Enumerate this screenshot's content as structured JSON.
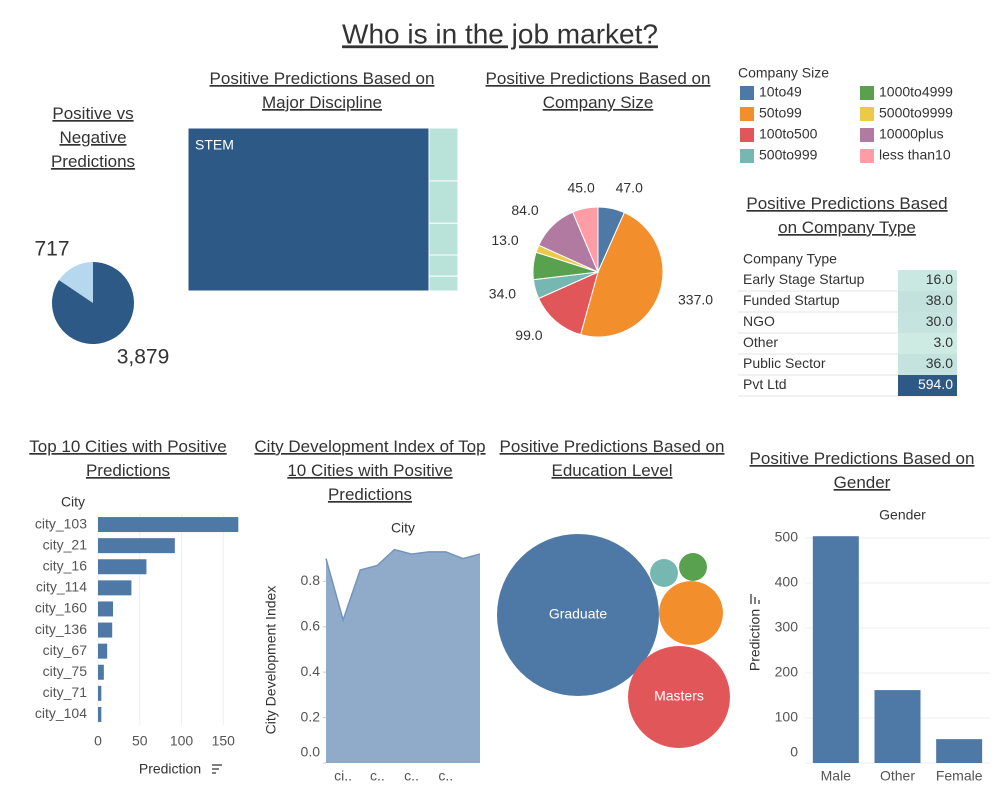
{
  "title": "Who is in the job market?",
  "chart_data": [
    {
      "type": "pie",
      "title": "Positive vs Negative Predictions",
      "values": [
        717,
        3879
      ],
      "value_labels": [
        "717",
        "3,879"
      ],
      "colors": [
        "#b5d8ee",
        "#2c5985"
      ]
    },
    {
      "type": "treemap",
      "title": "Positive Predictions Based on Major Discipline",
      "categories": [
        "STEM",
        null,
        null,
        null,
        null,
        null
      ],
      "values": [
        640,
        25,
        20,
        15,
        10,
        7
      ],
      "colors": [
        "#2c5985",
        "#b9e3d9",
        "#b9e3d9",
        "#b9e3d9",
        "#b9e3d9",
        "#b9e3d9"
      ]
    },
    {
      "type": "pie",
      "title": "Positive Predictions Based on Company Size",
      "legend_title": "Company Size",
      "categories": [
        "10to49",
        "50to99",
        "100to500",
        "500to999",
        "1000to4999",
        "5000to9999",
        "10000plus",
        "less than10"
      ],
      "values": [
        47,
        337,
        99,
        34,
        48,
        13,
        84,
        45
      ],
      "value_labels": [
        "47.0",
        "337.0",
        "99.0",
        "34.0",
        null,
        "13.0",
        "84.0",
        "45.0"
      ],
      "colors": [
        "#4e79a7",
        "#f28e2b",
        "#e15759",
        "#76b7b2",
        "#59a14f",
        "#edc948",
        "#b07aa1",
        "#ff9da7"
      ]
    },
    {
      "type": "highlight-table",
      "title": "Positive Predictions Based on Company Type",
      "header": "Company Type",
      "categories": [
        "Early Stage Startup",
        "Funded Startup",
        "NGO",
        "Other",
        "Public Sector",
        "Pvt Ltd"
      ],
      "values": [
        16,
        38,
        30,
        3,
        36,
        594
      ],
      "value_labels": [
        "16.0",
        "38.0",
        "30.0",
        "3.0",
        "36.0",
        "594.0"
      ],
      "colors": [
        "#cdebe3",
        "#2c5985"
      ]
    },
    {
      "type": "bar",
      "orientation": "horizontal",
      "title": "Top 10 Cities with Positive Predictions",
      "category_label": "City",
      "x_label": "Prediction",
      "categories": [
        "city_103",
        "city_21",
        "city_16",
        "city_114",
        "city_160",
        "city_136",
        "city_67",
        "city_75",
        "city_71",
        "city_104"
      ],
      "values": [
        168,
        92,
        58,
        40,
        18,
        17,
        11,
        7,
        4,
        4
      ],
      "color": "#4e79a7",
      "xlim": [
        0,
        170
      ],
      "xticks": [
        0,
        50,
        100,
        150
      ],
      "grid": true
    },
    {
      "type": "area",
      "title": "City Development Index of Top 10 Cities with Positive Predictions",
      "x_label": "City",
      "y_label": "City Development Index",
      "categories": [
        null,
        "ci..",
        null,
        "c..",
        null,
        "c..",
        null,
        "c..",
        null,
        null
      ],
      "values": [
        0.9,
        0.63,
        0.85,
        0.87,
        0.94,
        0.92,
        0.93,
        0.93,
        0.9,
        0.92
      ],
      "color": "#8fabc9",
      "ylim": [
        0,
        0.96
      ],
      "yticks": [
        {
          "value": 0,
          "label": "0.0"
        },
        0.2,
        0.4,
        0.6,
        0.8
      ],
      "grid": false
    },
    {
      "type": "bubble",
      "title": "Positive Predictions Based on Education Level",
      "categories": [
        "Graduate",
        "Masters",
        null,
        null,
        null
      ],
      "values": [
        470,
        186,
        73,
        14,
        14
      ],
      "colors": [
        "#4e79a7",
        "#e15759",
        "#f28e2b",
        "#76b7b2",
        "#59a14f"
      ]
    },
    {
      "type": "bar",
      "orientation": "vertical",
      "title": "Positive Predictions Based on Gender",
      "x_label": "Gender",
      "y_label": "Prediction",
      "categories": [
        "Male",
        "Other",
        "Female"
      ],
      "values": [
        504,
        162,
        53
      ],
      "color": "#4e79a7",
      "ylim": [
        0,
        520
      ],
      "yticks": [
        0,
        100,
        200,
        300,
        400,
        500
      ],
      "grid": true
    }
  ]
}
